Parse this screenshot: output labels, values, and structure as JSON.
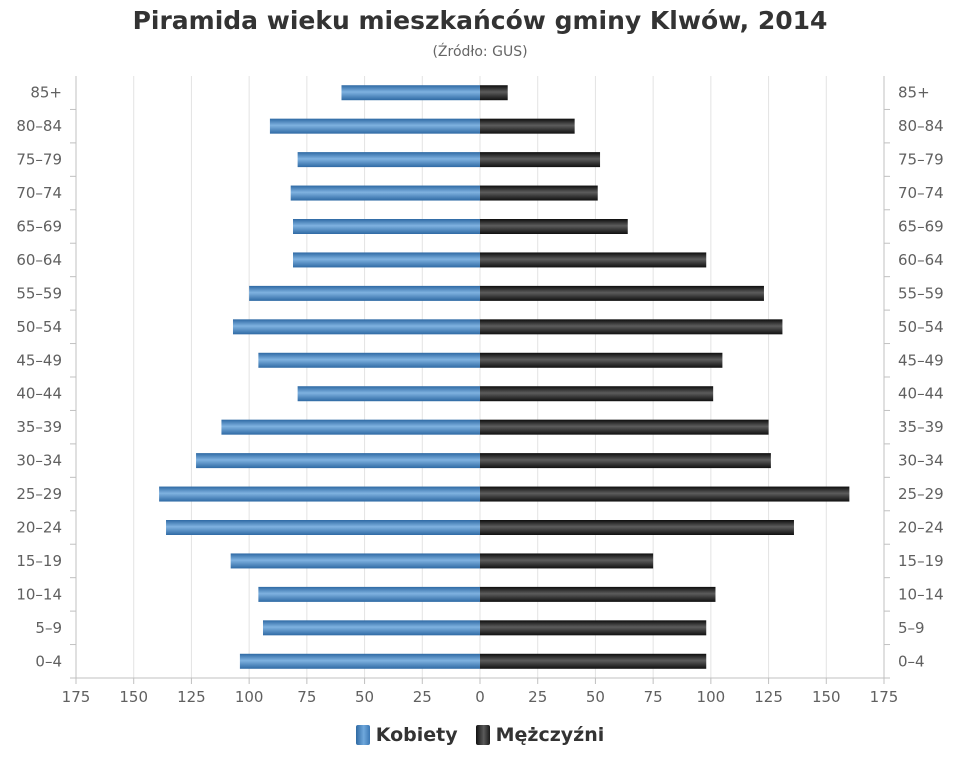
{
  "chart_data": {
    "type": "bar",
    "orientation": "horizontal",
    "title": "Piramida wieku mieszkańców gminy Klwów, 2014",
    "subtitle": "(Źródło: GUS)",
    "categories": [
      "85+",
      "80–84",
      "75–79",
      "70–74",
      "65–69",
      "60–64",
      "55–59",
      "50–54",
      "45–49",
      "40–44",
      "35–39",
      "30–34",
      "25–29",
      "20–24",
      "15–19",
      "10–14",
      "5–9",
      "0–4"
    ],
    "series": [
      {
        "name": "Kobiety",
        "side": "left",
        "color": "#4a86c5",
        "values": [
          60,
          91,
          79,
          82,
          81,
          81,
          100,
          107,
          96,
          79,
          112,
          123,
          139,
          136,
          108,
          96,
          94,
          104
        ]
      },
      {
        "name": "Mężczyźni",
        "side": "right",
        "color": "#1a1a1a",
        "values": [
          12,
          41,
          52,
          51,
          64,
          98,
          123,
          131,
          105,
          101,
          125,
          126,
          160,
          136,
          75,
          102,
          98,
          98
        ]
      }
    ],
    "x_ticks": [
      "175",
      "150",
      "125",
      "100",
      "75",
      "50",
      "25",
      "0",
      "25",
      "50",
      "75",
      "100",
      "125",
      "150",
      "175"
    ],
    "xlim": [
      -175,
      175
    ],
    "grid": true,
    "legend_position": "bottom-center"
  }
}
